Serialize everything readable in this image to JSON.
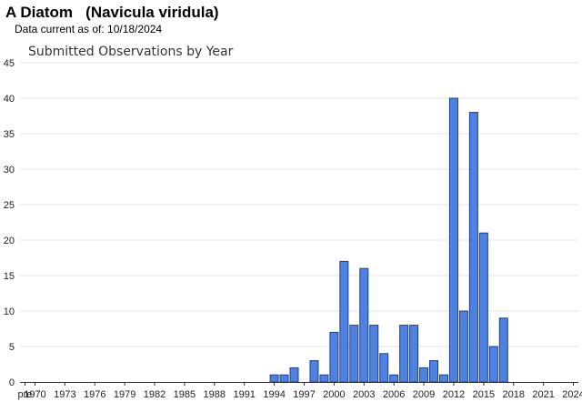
{
  "header": {
    "title": "A Diatom   (Navicula viridula)",
    "data_note": "Data current as of: 10/18/2024"
  },
  "chart_data": {
    "type": "bar",
    "title": "Submitted Observations by Year",
    "xlabel": "",
    "ylabel": "",
    "ylim": [
      0,
      45
    ],
    "yticks": [
      0,
      5,
      10,
      15,
      20,
      25,
      30,
      35,
      40,
      45
    ],
    "grid": true,
    "bar_color": "#4f81e0",
    "x_tick_labels": [
      "pre",
      "1970",
      "1973",
      "1976",
      "1979",
      "1982",
      "1985",
      "1988",
      "1991",
      "1994",
      "1997",
      "2000",
      "2003",
      "2006",
      "2009",
      "2012",
      "2015",
      "2018",
      "2021",
      "2024"
    ],
    "categories": [
      "pre",
      "1970",
      "1971",
      "1972",
      "1973",
      "1974",
      "1975",
      "1976",
      "1977",
      "1978",
      "1979",
      "1980",
      "1981",
      "1982",
      "1983",
      "1984",
      "1985",
      "1986",
      "1987",
      "1988",
      "1989",
      "1990",
      "1991",
      "1992",
      "1993",
      "1994",
      "1995",
      "1996",
      "1997",
      "1998",
      "1999",
      "2000",
      "2001",
      "2002",
      "2003",
      "2004",
      "2005",
      "2006",
      "2007",
      "2008",
      "2009",
      "2010",
      "2011",
      "2012",
      "2013",
      "2014",
      "2015",
      "2016",
      "2017",
      "2018",
      "2019",
      "2020",
      "2021",
      "2022",
      "2023",
      "2024"
    ],
    "values": [
      0,
      0,
      0,
      0,
      0,
      0,
      0,
      0,
      0,
      0,
      0,
      0,
      0,
      0,
      0,
      0,
      0,
      0,
      0,
      0,
      0,
      0,
      0,
      0,
      0,
      1,
      1,
      2,
      0,
      3,
      1,
      7,
      17,
      8,
      16,
      8,
      4,
      1,
      8,
      8,
      2,
      3,
      1,
      40,
      10,
      38,
      21,
      5,
      9,
      0,
      0,
      0,
      0,
      0,
      0,
      0
    ]
  }
}
